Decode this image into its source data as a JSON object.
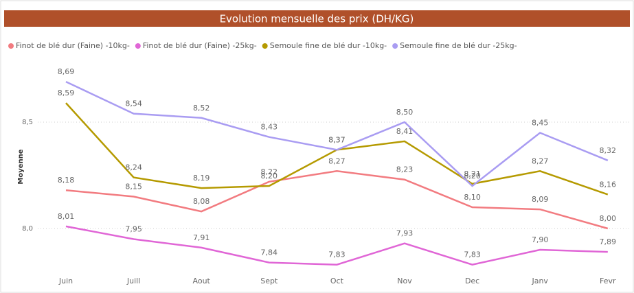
{
  "chart_data": {
    "type": "line",
    "title": "Evolution mensuelle des prix (DH/KG)",
    "y_label": "Moyenne",
    "categories": [
      "Juin",
      "Juill",
      "Aout",
      "Sept",
      "Oct",
      "Nov",
      "Dec",
      "Janv",
      "Fevr"
    ],
    "series": [
      {
        "name": "Finot de blé dur (Faine) -10kg-",
        "color": "#f27b80",
        "values": [
          8.18,
          8.15,
          8.08,
          8.22,
          8.27,
          8.23,
          8.1,
          8.09,
          8.0
        ],
        "value_labels": [
          "8,18",
          "8,15",
          "8,08",
          "8,22",
          "8,27",
          "8,23",
          "8,10",
          "8,09",
          "8,00"
        ]
      },
      {
        "name": "Finot de blé dur (Faine) -25kg-",
        "color": "#e066d6",
        "values": [
          8.01,
          7.95,
          7.91,
          7.84,
          7.83,
          7.93,
          7.83,
          7.9,
          7.89
        ],
        "value_labels": [
          "8,01",
          "7,95",
          "7,91",
          "7,84",
          "7,83",
          "7,93",
          "7,83",
          "7,90",
          "7,89"
        ]
      },
      {
        "name": "Semoule fine de blé dur -10kg-",
        "color": "#b59a00",
        "values": [
          8.59,
          8.24,
          8.19,
          8.2,
          8.37,
          8.41,
          8.21,
          8.27,
          8.16
        ],
        "value_labels": [
          "8,59",
          "8,24",
          "8,19",
          "8,20",
          "8,37",
          "8,41",
          "8,21",
          "8,27",
          "8,16"
        ]
      },
      {
        "name": "Semoule fine de blé dur -25kg-",
        "color": "#a99cf2",
        "values": [
          8.69,
          8.54,
          8.52,
          8.43,
          8.37,
          8.5,
          8.2,
          8.45,
          8.32
        ],
        "value_labels": [
          "8,69",
          "8,54",
          "8,52",
          "8,43",
          "8,37",
          "8,50",
          "8,20",
          "8,45",
          "8,32"
        ]
      }
    ],
    "ylim": [
      7.8,
      8.8
    ],
    "yticks": [
      {
        "value": 8.0,
        "label": "8,0"
      },
      {
        "value": 8.5,
        "label": "8,5"
      }
    ],
    "grid": true,
    "legend": "top"
  }
}
